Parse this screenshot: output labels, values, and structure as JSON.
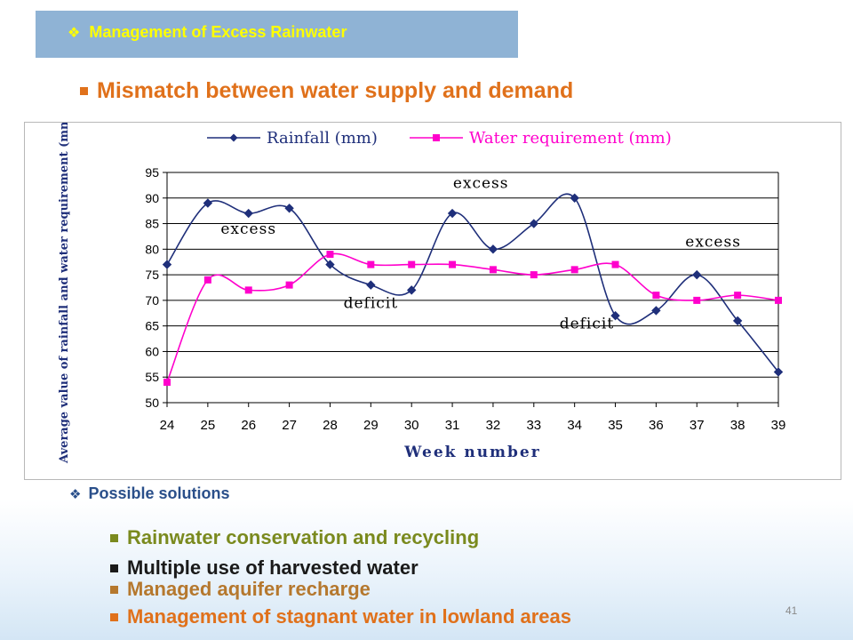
{
  "banner": {
    "title": "Management of Excess Rainwater"
  },
  "subtitle": "Mismatch between water supply and demand",
  "chart_data": {
    "type": "line",
    "xlabel": "Week number",
    "ylabel": "Average value of rainfall and water requirement (mm)",
    "x": [
      24,
      25,
      26,
      27,
      28,
      29,
      30,
      31,
      32,
      33,
      34,
      35,
      36,
      37,
      38,
      39
    ],
    "ylim": [
      50,
      95
    ],
    "yticks": [
      50,
      55,
      60,
      65,
      70,
      75,
      80,
      85,
      90,
      95
    ],
    "grid": true,
    "legend": "top",
    "series": [
      {
        "name": "Rainfall (mm)",
        "color": "#1f2f7a",
        "marker": "diamond",
        "values": [
          77,
          89,
          87,
          88,
          77,
          73,
          72,
          87,
          80,
          85,
          90,
          67,
          68,
          75,
          66,
          56
        ]
      },
      {
        "name": "Water requirement (mm)",
        "color": "#ff00cc",
        "marker": "square",
        "values": [
          54,
          74,
          72,
          73,
          79,
          77,
          77,
          77,
          76,
          75,
          76,
          77,
          71,
          70,
          71,
          70
        ]
      }
    ],
    "annotations": [
      {
        "text": "excess",
        "x": 26,
        "y": 83
      },
      {
        "text": "deficit",
        "x": 29,
        "y": 68.5
      },
      {
        "text": "excess",
        "x": 31.7,
        "y": 92
      },
      {
        "text": "deficit",
        "x": 34.3,
        "y": 64.5
      },
      {
        "text": "excess",
        "x": 37.4,
        "y": 80.5
      }
    ]
  },
  "possible_solutions": {
    "heading": "Possible solutions",
    "items": [
      {
        "text": "Rainwater conservation and recycling",
        "color": "#7a8a1e"
      },
      {
        "text": "Multiple use of harvested water",
        "color": "#1a1a1a"
      },
      {
        "text": "Managed aquifer recharge",
        "color": "#b5782e"
      },
      {
        "text": "Management of stagnant water in lowland areas",
        "color": "#e0711b"
      }
    ]
  },
  "page_number": "41"
}
